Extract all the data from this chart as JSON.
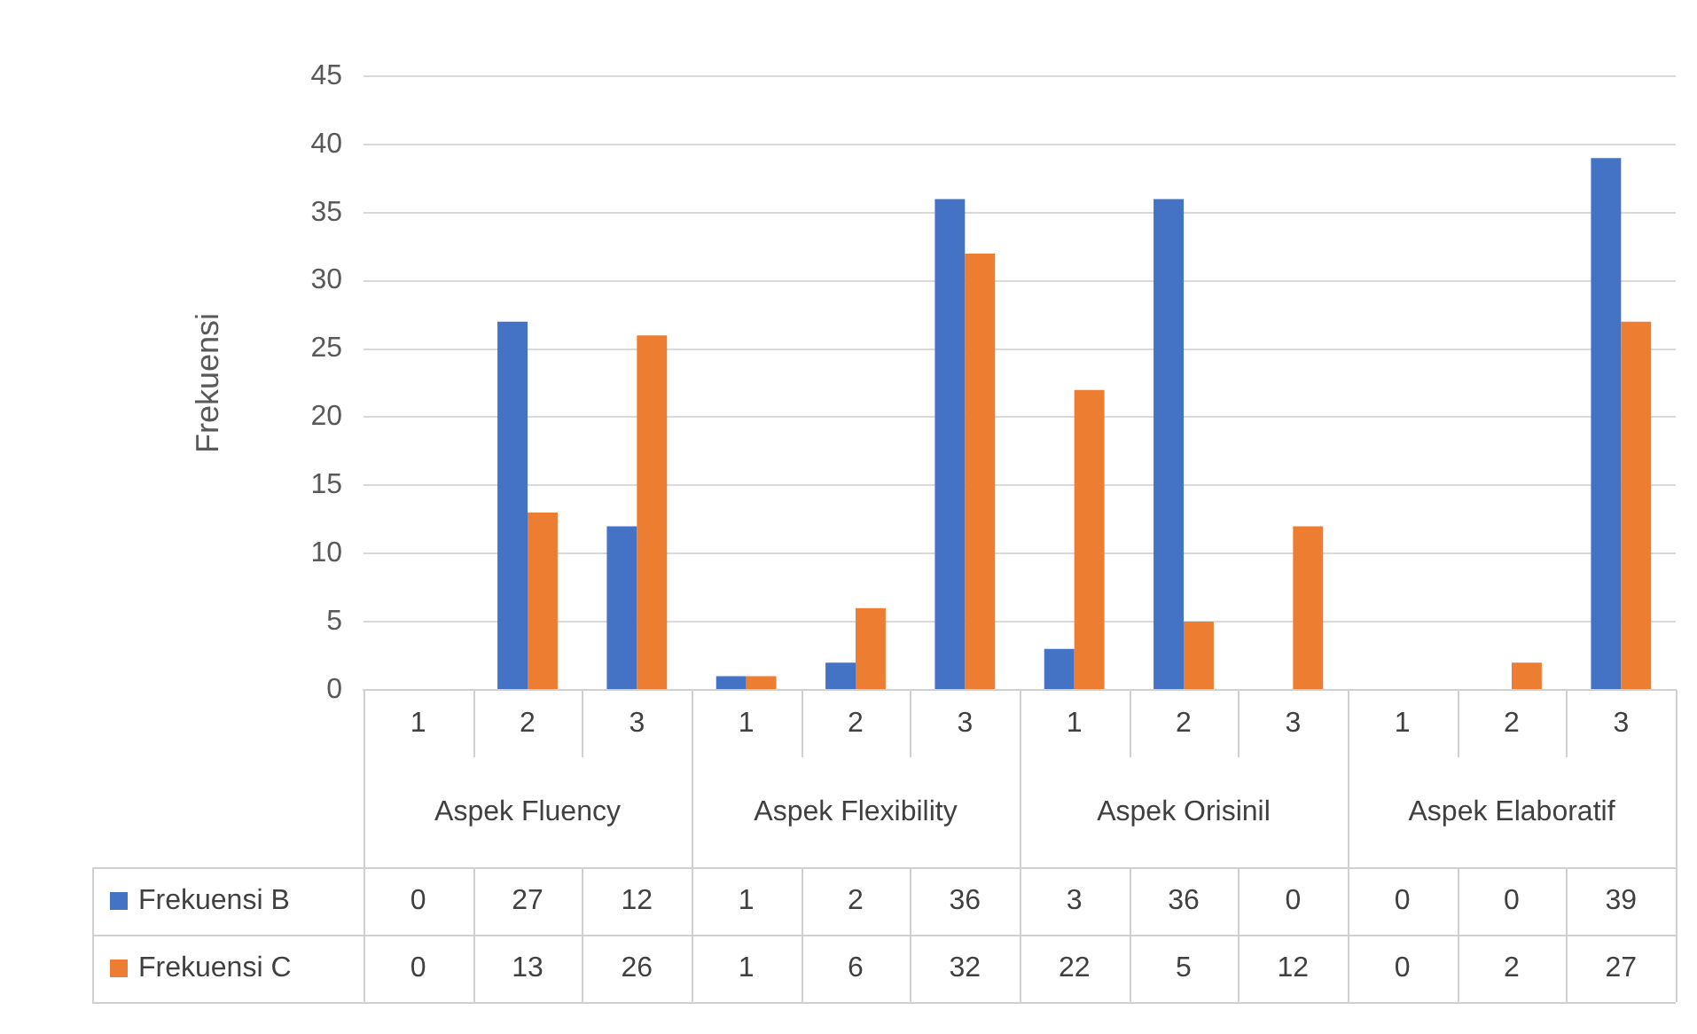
{
  "chart_data": {
    "type": "bar",
    "ylabel": "Frekuensi",
    "categories": [
      "1",
      "2",
      "3",
      "1",
      "2",
      "3",
      "1",
      "2",
      "3",
      "1",
      "2",
      "3"
    ],
    "annotations": [
      "Aspek Fluency",
      "Aspek Flexibility",
      "Aspek Orisinil",
      "Aspek Elaboratif"
    ],
    "series": [
      {
        "name": "Frekuensi B",
        "color": "#4472c4",
        "values": [
          0,
          27,
          12,
          1,
          2,
          36,
          3,
          36,
          0,
          0,
          0,
          39
        ]
      },
      {
        "name": "Frekuensi C",
        "color": "#ed7d31",
        "values": [
          0,
          13,
          26,
          1,
          6,
          32,
          22,
          5,
          12,
          0,
          2,
          27
        ]
      }
    ],
    "ylim": [
      0,
      45
    ],
    "yticks": [
      0,
      5,
      10,
      15,
      20,
      25,
      30,
      35,
      40,
      45
    ],
    "grid": "y",
    "legend": "bottom",
    "data_labels": true
  }
}
